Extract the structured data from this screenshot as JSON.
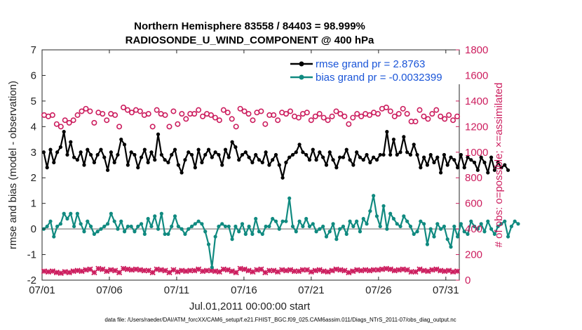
{
  "chart_data": {
    "type": "line",
    "title_line1": "Northern Hemisphere 83558 / 84403 = 98.999%",
    "title_line2": "RADIOSONDE_U_WIND_COMPONENT @ 400 hPa",
    "xlabel": "Jul.01,2011 00:00:00 start",
    "ylabel_left": "rmse and bias (model - observation)",
    "ylabel_right": "# of obs: o=possible; ×=assimilated",
    "footnote": "data file: /Users/raeder/DAI/ATM_forcXX/CAM6_setup/f.e21.FHIST_BGC.f09_025.CAM6assim.011/Diags_NTrS_2011-07/obs_diag_output.nc",
    "xlim": [
      0,
      31
    ],
    "ylim_left": [
      -2,
      7
    ],
    "ylim_right": [
      0,
      1800
    ],
    "x_ticks": [
      0,
      5,
      10,
      15,
      20,
      25,
      30
    ],
    "x_tick_labels": [
      "07/01",
      "07/06",
      "07/11",
      "07/16",
      "07/21",
      "07/26",
      "07/31"
    ],
    "y_ticks_left": [
      "-2",
      "-1",
      "0",
      "1",
      "2",
      "3",
      "4",
      "5",
      "6",
      "7"
    ],
    "y_ticks_right": [
      "0",
      "200",
      "400",
      "600",
      "800",
      "1000",
      "1200",
      "1400",
      "1600",
      "1800"
    ],
    "x_step": 0.25,
    "colors": {
      "rmse": "#000000",
      "bias": "#108a80",
      "obs": "#cc1d5e",
      "zero_line": "#b0b0b0"
    },
    "series": [
      {
        "name": "rmse grand pr = 2.8763",
        "axis": "left",
        "color": "#000000",
        "values": [
          3.0,
          2.4,
          3.1,
          2.6,
          3.0,
          3.2,
          3.8,
          2.9,
          3.4,
          2.8,
          2.7,
          3.0,
          2.5,
          3.1,
          2.9,
          2.6,
          2.9,
          3.1,
          2.8,
          2.3,
          3.0,
          2.6,
          2.9,
          3.5,
          3.3,
          2.5,
          3.0,
          2.9,
          2.4,
          2.8,
          3.1,
          2.6,
          3.0,
          2.7,
          3.7,
          2.9,
          2.7,
          2.6,
          2.9,
          3.1,
          2.5,
          2.2,
          2.7,
          3.0,
          2.9,
          2.4,
          3.1,
          2.6,
          2.9,
          3.1,
          2.8,
          3.0,
          2.9,
          2.5,
          3.1,
          2.8,
          3.4,
          3.2,
          2.7,
          2.9,
          3.0,
          2.8,
          2.6,
          2.9,
          2.7,
          2.6,
          3.0,
          2.5,
          2.7,
          2.9,
          2.5,
          2.0,
          2.6,
          2.8,
          2.9,
          3.0,
          3.3,
          3.0,
          2.9,
          2.7,
          3.1,
          2.7,
          3.0,
          2.8,
          2.5,
          3.0,
          2.7,
          2.4,
          2.8,
          2.8,
          3.1,
          2.7,
          2.5,
          3.0,
          2.8,
          2.7,
          2.9,
          2.6,
          2.8,
          2.7,
          2.9,
          2.9,
          3.8,
          2.9,
          3.5,
          2.9,
          3.0,
          3.6,
          3.0,
          2.9,
          3.3,
          2.9,
          2.4,
          2.8,
          2.5,
          2.9,
          2.6,
          2.8,
          2.2,
          2.9,
          2.5,
          2.8,
          2.7,
          2.4,
          2.9,
          2.4,
          2.8,
          2.7,
          2.6,
          2.3,
          2.8,
          2.6,
          2.2,
          2.8,
          2.3,
          2.6,
          2.4,
          2.5,
          2.3
        ]
      },
      {
        "name": "bias grand pr = -0.0032399",
        "axis": "left",
        "color": "#108a80",
        "values": [
          0.0,
          0.1,
          0.3,
          -0.3,
          0.1,
          0.2,
          0.6,
          0.4,
          0.6,
          0.1,
          0.6,
          0.2,
          -0.1,
          0.3,
          0.1,
          -0.2,
          -0.1,
          0.0,
          0.1,
          0.2,
          0.6,
          0.3,
          0.0,
          0.3,
          -0.1,
          0.1,
          0.1,
          -0.1,
          0.1,
          0.2,
          -0.2,
          0.4,
          0.1,
          0.5,
          0.0,
          0.6,
          -0.2,
          -0.2,
          0.1,
          0.5,
          0.1,
          0.0,
          -0.2,
          0.0,
          0.1,
          0.2,
          0.3,
          0.2,
          -0.1,
          -0.6,
          -1.5,
          -0.3,
          0.1,
          0.2,
          0.1,
          0.1,
          -0.4,
          0.1,
          -0.1,
          0.2,
          -0.2,
          0.1,
          -0.2,
          0.4,
          -0.1,
          -0.2,
          0.1,
          0.1,
          0.4,
          0.3,
          0.0,
          0.3,
          0.3,
          1.2,
          0.1,
          -0.1,
          0.3,
          0.1,
          0.4,
          0.1,
          0.2,
          -0.1,
          0.0,
          0.1,
          -0.3,
          -0.1,
          0.2,
          -0.4,
          0.0,
          0.1,
          -0.2,
          0.3,
          0.1,
          0.3,
          -0.1,
          0.4,
          0.2,
          0.7,
          1.3,
          0.5,
          0.1,
          0.9,
          0.0,
          0.6,
          0.4,
          0.2,
          0.1,
          0.5,
          0.3,
          0.1,
          -0.2,
          -0.1,
          0.3,
          0.2,
          -0.6,
          0.0,
          -0.3,
          0.2,
          0.0,
          0.1,
          -0.4,
          -0.7,
          0.1,
          -0.3,
          0.2,
          -0.1,
          -0.2,
          0.3,
          0.1,
          0.0,
          0.2,
          -0.1,
          0.3,
          0.0,
          -0.2,
          0.1,
          0.2,
          0.3,
          -0.3,
          0.1,
          0.3,
          0.2
        ]
      },
      {
        "name": "possible obs",
        "axis": "right",
        "marker": "circle",
        "color": "#cc1d5e",
        "values": [
          1290,
          1280,
          1290,
          1220,
          1200,
          1250,
          1230,
          1250,
          1290,
          1320,
          1340,
          1320,
          1230,
          1310,
          1300,
          1250,
          1300,
          1290,
          1200,
          1350,
          1330,
          1310,
          1330,
          1320,
          1290,
          1300,
          1200,
          1330,
          1300,
          1290,
          1200,
          1320,
          1220,
          1300,
          1260,
          1300,
          1300,
          1330,
          1280,
          1300,
          1290,
          1270,
          1250,
          1330,
          1310,
          1260,
          1200,
          1340,
          1320,
          1300,
          1250,
          1310,
          1320,
          1220,
          1290,
          1290,
          1250,
          1310,
          1300,
          1320,
          1280,
          1270,
          1300,
          1310,
          1250,
          1280,
          1300,
          1270,
          1250,
          1280,
          1320,
          1300,
          1280,
          1220,
          1270,
          1300,
          1280,
          1300,
          1290,
          1310,
          1300,
          1340,
          1350,
          1320,
          1280,
          1300,
          1340,
          1300,
          1240,
          1240,
          1330,
          1280,
          1260,
          1300,
          1330,
          1280,
          1260,
          1290,
          1250,
          1280
        ]
      },
      {
        "name": "assimilated obs",
        "axis": "right",
        "marker": "x",
        "color": "#cc1d5e",
        "values": [
          70,
          65,
          70,
          60,
          55,
          65,
          60,
          70,
          75,
          70,
          80,
          85,
          60,
          90,
          85,
          70,
          80,
          75,
          60,
          90,
          85,
          80,
          85,
          80,
          75,
          75,
          60,
          85,
          80,
          75,
          60,
          80,
          65,
          75,
          70,
          75,
          75,
          85,
          70,
          75,
          75,
          70,
          65,
          85,
          80,
          70,
          60,
          90,
          85,
          75,
          65,
          80,
          85,
          60,
          75,
          75,
          65,
          80,
          75,
          80,
          70,
          70,
          80,
          80,
          65,
          75,
          80,
          70,
          65,
          75,
          85,
          80,
          75,
          60,
          70,
          80,
          75,
          80,
          75,
          80,
          80,
          85,
          90,
          85,
          75,
          80,
          85,
          80,
          65,
          65,
          85,
          75,
          70,
          80,
          85,
          75,
          70,
          75,
          65,
          70
        ]
      }
    ]
  }
}
